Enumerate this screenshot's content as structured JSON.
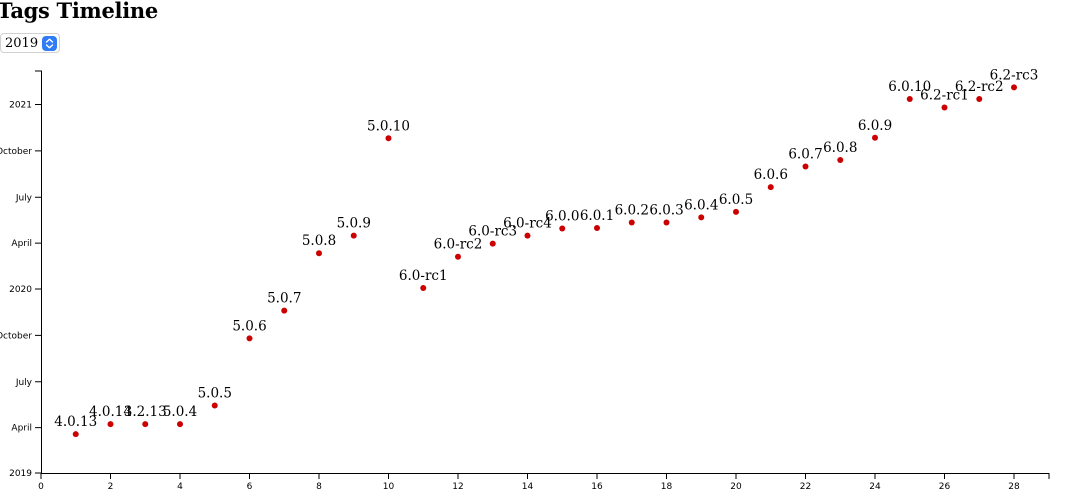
{
  "header": {
    "title": "Tags Timeline"
  },
  "year_select": {
    "value": "2019",
    "icon": "chevron-up-down-icon"
  },
  "chart_data": {
    "type": "scatter",
    "title": "Tags Timeline",
    "xlabel": "",
    "ylabel": "",
    "xlim": [
      0,
      29
    ],
    "x_ticks": [
      0,
      2,
      4,
      6,
      8,
      10,
      12,
      14,
      16,
      18,
      20,
      22,
      24,
      26,
      28
    ],
    "ylim": [
      "2019-01-01",
      "2021-03-31"
    ],
    "y_ticks": [
      {
        "date": "2019-01-01",
        "label": "2019"
      },
      {
        "date": "2019-04-01",
        "label": "April"
      },
      {
        "date": "2019-07-01",
        "label": "July"
      },
      {
        "date": "2019-10-01",
        "label": "October"
      },
      {
        "date": "2020-01-01",
        "label": "2020"
      },
      {
        "date": "2020-04-01",
        "label": "April"
      },
      {
        "date": "2020-07-01",
        "label": "July"
      },
      {
        "date": "2020-10-01",
        "label": "October"
      },
      {
        "date": "2021-01-01",
        "label": "2021"
      }
    ],
    "grid": false,
    "point_color": "#cc0000",
    "points": [
      {
        "x": 1,
        "date": "2019-03-19",
        "label": "4.0.13"
      },
      {
        "x": 2,
        "date": "2019-04-08",
        "label": "4.0.14"
      },
      {
        "x": 3,
        "date": "2019-04-08",
        "label": "3.2.13"
      },
      {
        "x": 4,
        "date": "2019-04-08",
        "label": "5.0.4"
      },
      {
        "x": 5,
        "date": "2019-05-15",
        "label": "5.0.5"
      },
      {
        "x": 6,
        "date": "2019-09-25",
        "label": "5.0.6"
      },
      {
        "x": 7,
        "date": "2019-11-19",
        "label": "5.0.7"
      },
      {
        "x": 8,
        "date": "2020-03-12",
        "label": "5.0.8"
      },
      {
        "x": 9,
        "date": "2020-04-16",
        "label": "5.0.9"
      },
      {
        "x": 10,
        "date": "2020-10-26",
        "label": "5.0.10"
      },
      {
        "x": 11,
        "date": "2020-01-03",
        "label": "6.0-rc1"
      },
      {
        "x": 12,
        "date": "2020-03-05",
        "label": "6.0-rc2"
      },
      {
        "x": 13,
        "date": "2020-03-31",
        "label": "6.0-rc3"
      },
      {
        "x": 14,
        "date": "2020-04-16",
        "label": "6.0-rc4"
      },
      {
        "x": 15,
        "date": "2020-04-30",
        "label": "6.0.0"
      },
      {
        "x": 16,
        "date": "2020-05-01",
        "label": "6.0.1"
      },
      {
        "x": 17,
        "date": "2020-05-12",
        "label": "6.0.2"
      },
      {
        "x": 18,
        "date": "2020-05-12",
        "label": "6.0.3"
      },
      {
        "x": 19,
        "date": "2020-05-22",
        "label": "6.0.4"
      },
      {
        "x": 20,
        "date": "2020-06-02",
        "label": "6.0.5"
      },
      {
        "x": 21,
        "date": "2020-07-21",
        "label": "6.0.6"
      },
      {
        "x": 22,
        "date": "2020-08-31",
        "label": "6.0.7"
      },
      {
        "x": 23,
        "date": "2020-09-13",
        "label": "6.0.8"
      },
      {
        "x": 24,
        "date": "2020-10-27",
        "label": "6.0.9"
      },
      {
        "x": 25,
        "date": "2021-01-12",
        "label": "6.0.10"
      },
      {
        "x": 26,
        "date": "2020-12-26",
        "label": "6.2-rc1"
      },
      {
        "x": 27,
        "date": "2021-01-12",
        "label": "6.2-rc2"
      },
      {
        "x": 28,
        "date": "2021-02-04",
        "label": "6.2-rc3"
      }
    ]
  }
}
